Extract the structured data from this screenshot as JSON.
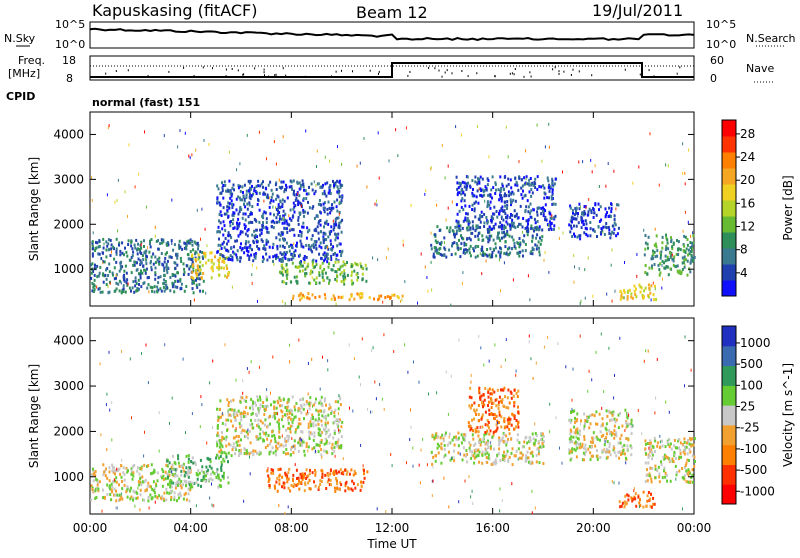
{
  "header": {
    "station": "Kapuskasing (fitACF)",
    "beam": "Beam 12",
    "date": "19/Jul/2011",
    "mode": "normal (fast) 151"
  },
  "left_labels": {
    "nsky": "N.Sky",
    "freq_line1": "Freq.",
    "freq_line2": "[MHz]",
    "cpid": "CPID"
  },
  "right_labels": {
    "nsearch": "N.Search",
    "nave": "Nave"
  },
  "noise_axis": {
    "left_top": "10^5",
    "left_bottom": "10^0",
    "right_top": "10^5",
    "right_bottom": "10^0"
  },
  "freq_axis": {
    "left": [
      "18",
      "8"
    ],
    "right": [
      "60",
      "0"
    ]
  },
  "chart_data": [
    {
      "type": "heatmap",
      "parameter": "Power",
      "ylabel": "Slant Range [km]",
      "yticks": [
        "1000",
        "2000",
        "3000",
        "4000"
      ],
      "ylim": [
        180,
        4500
      ],
      "xticks": [
        "00:00",
        "04:00",
        "08:00",
        "12:00",
        "16:00",
        "20:00",
        "00:00"
      ],
      "colorbar": {
        "label": "Power [dB]",
        "ticks": [
          "4",
          "8",
          "12",
          "16",
          "20",
          "24",
          "28"
        ],
        "colors": [
          "#1010ff",
          "#2040b0",
          "#3a7a90",
          "#2f8f5a",
          "#66bb33",
          "#b5d42a",
          "#f0d020",
          "#f5a623",
          "#ff7f00",
          "#ff3300",
          "#ff0000"
        ]
      },
      "regions": [
        {
          "t0": 0.0,
          "t1": 4.5,
          "r0": 500,
          "r1": 1700,
          "level": 2
        },
        {
          "t0": 4.0,
          "t1": 5.5,
          "r0": 800,
          "r1": 1400,
          "level": 6
        },
        {
          "t0": 5.0,
          "t1": 10.0,
          "r0": 1200,
          "r1": 3000,
          "level": 1
        },
        {
          "t0": 7.5,
          "t1": 11.0,
          "r0": 700,
          "r1": 1200,
          "level": 4
        },
        {
          "t0": 8.0,
          "t1": 12.5,
          "r0": 350,
          "r1": 500,
          "level": 7
        },
        {
          "t0": 13.5,
          "t1": 18.0,
          "r0": 1300,
          "r1": 2000,
          "level": 2
        },
        {
          "t0": 14.5,
          "t1": 18.5,
          "r0": 1900,
          "r1": 3100,
          "level": 1
        },
        {
          "t0": 19.0,
          "t1": 21.0,
          "r0": 1700,
          "r1": 2500,
          "level": 1
        },
        {
          "t0": 21.0,
          "t1": 22.5,
          "r0": 350,
          "r1": 700,
          "level": 6
        },
        {
          "t0": 22.0,
          "t1": 24.0,
          "r0": 900,
          "r1": 1800,
          "level": 3
        }
      ]
    },
    {
      "type": "heatmap",
      "parameter": "Velocity",
      "ylabel": "Slant Range [km]",
      "yticks": [
        "1000",
        "2000",
        "3000",
        "4000"
      ],
      "ylim": [
        180,
        4500
      ],
      "xticks": [
        "00:00",
        "04:00",
        "08:00",
        "12:00",
        "16:00",
        "20:00",
        "00:00"
      ],
      "xlabel": "Time UT",
      "colorbar": {
        "label": "Velocity [m s^-1]",
        "ticks": [
          "1000",
          "500",
          "100",
          "25",
          "-25",
          "-100",
          "-500",
          "-1000"
        ],
        "colors": [
          "#2030c0",
          "#3a6ab0",
          "#2f9a5a",
          "#66cc33",
          "#c8c8c8",
          "#f2a030",
          "#ff7f00",
          "#ff3000",
          "#ff0000"
        ]
      },
      "regions": [
        {
          "t0": 0.0,
          "t1": 4.0,
          "r0": 500,
          "r1": 1300,
          "level": 4
        },
        {
          "t0": 3.0,
          "t1": 5.5,
          "r0": 800,
          "r1": 1500,
          "level": 3
        },
        {
          "t0": 5.0,
          "t1": 10.0,
          "r0": 1500,
          "r1": 2800,
          "level": 4
        },
        {
          "t0": 7.0,
          "t1": 11.0,
          "r0": 700,
          "r1": 1200,
          "level": 6
        },
        {
          "t0": 13.5,
          "t1": 18.0,
          "r0": 1300,
          "r1": 2000,
          "level": 4
        },
        {
          "t0": 15.0,
          "t1": 17.0,
          "r0": 2000,
          "r1": 3000,
          "level": 6
        },
        {
          "t0": 19.0,
          "t1": 21.5,
          "r0": 1400,
          "r1": 2500,
          "level": 4
        },
        {
          "t0": 21.0,
          "t1": 22.5,
          "r0": 350,
          "r1": 700,
          "level": 6
        },
        {
          "t0": 22.0,
          "t1": 24.0,
          "r0": 900,
          "r1": 1900,
          "level": 4
        }
      ]
    }
  ]
}
